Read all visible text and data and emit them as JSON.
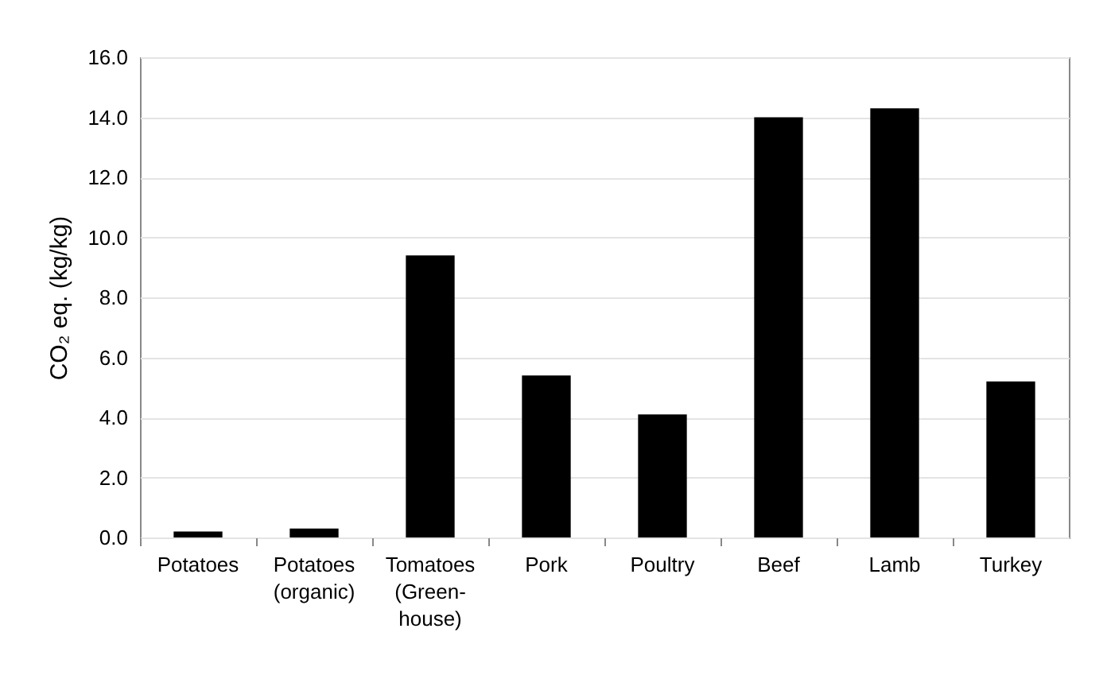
{
  "chart_data": {
    "type": "bar",
    "ylabel": "CO₂ eq.  (kg/kg)",
    "categories": [
      "Potatoes",
      "Potatoes (organic)",
      "Tomatoes (Green-house)",
      "Pork",
      "Poultry",
      "Beef",
      "Lamb",
      "Turkey"
    ],
    "values": [
      0.2,
      0.3,
      9.4,
      5.4,
      4.1,
      14.0,
      14.3,
      5.2
    ],
    "color": "#000000",
    "ylim": [
      0,
      16
    ],
    "yticks": [
      {
        "value": 0,
        "label": "0.0"
      },
      {
        "value": 2,
        "label": "2.0"
      },
      {
        "value": 4,
        "label": "4.0"
      },
      {
        "value": 6,
        "label": "6.0"
      },
      {
        "value": 8,
        "label": "8.0"
      },
      {
        "value": 10,
        "label": "10.0"
      },
      {
        "value": 12,
        "label": "12.0"
      },
      {
        "value": 14,
        "label": "14.0"
      },
      {
        "value": 16,
        "label": "16.0"
      }
    ],
    "grid": "y"
  }
}
